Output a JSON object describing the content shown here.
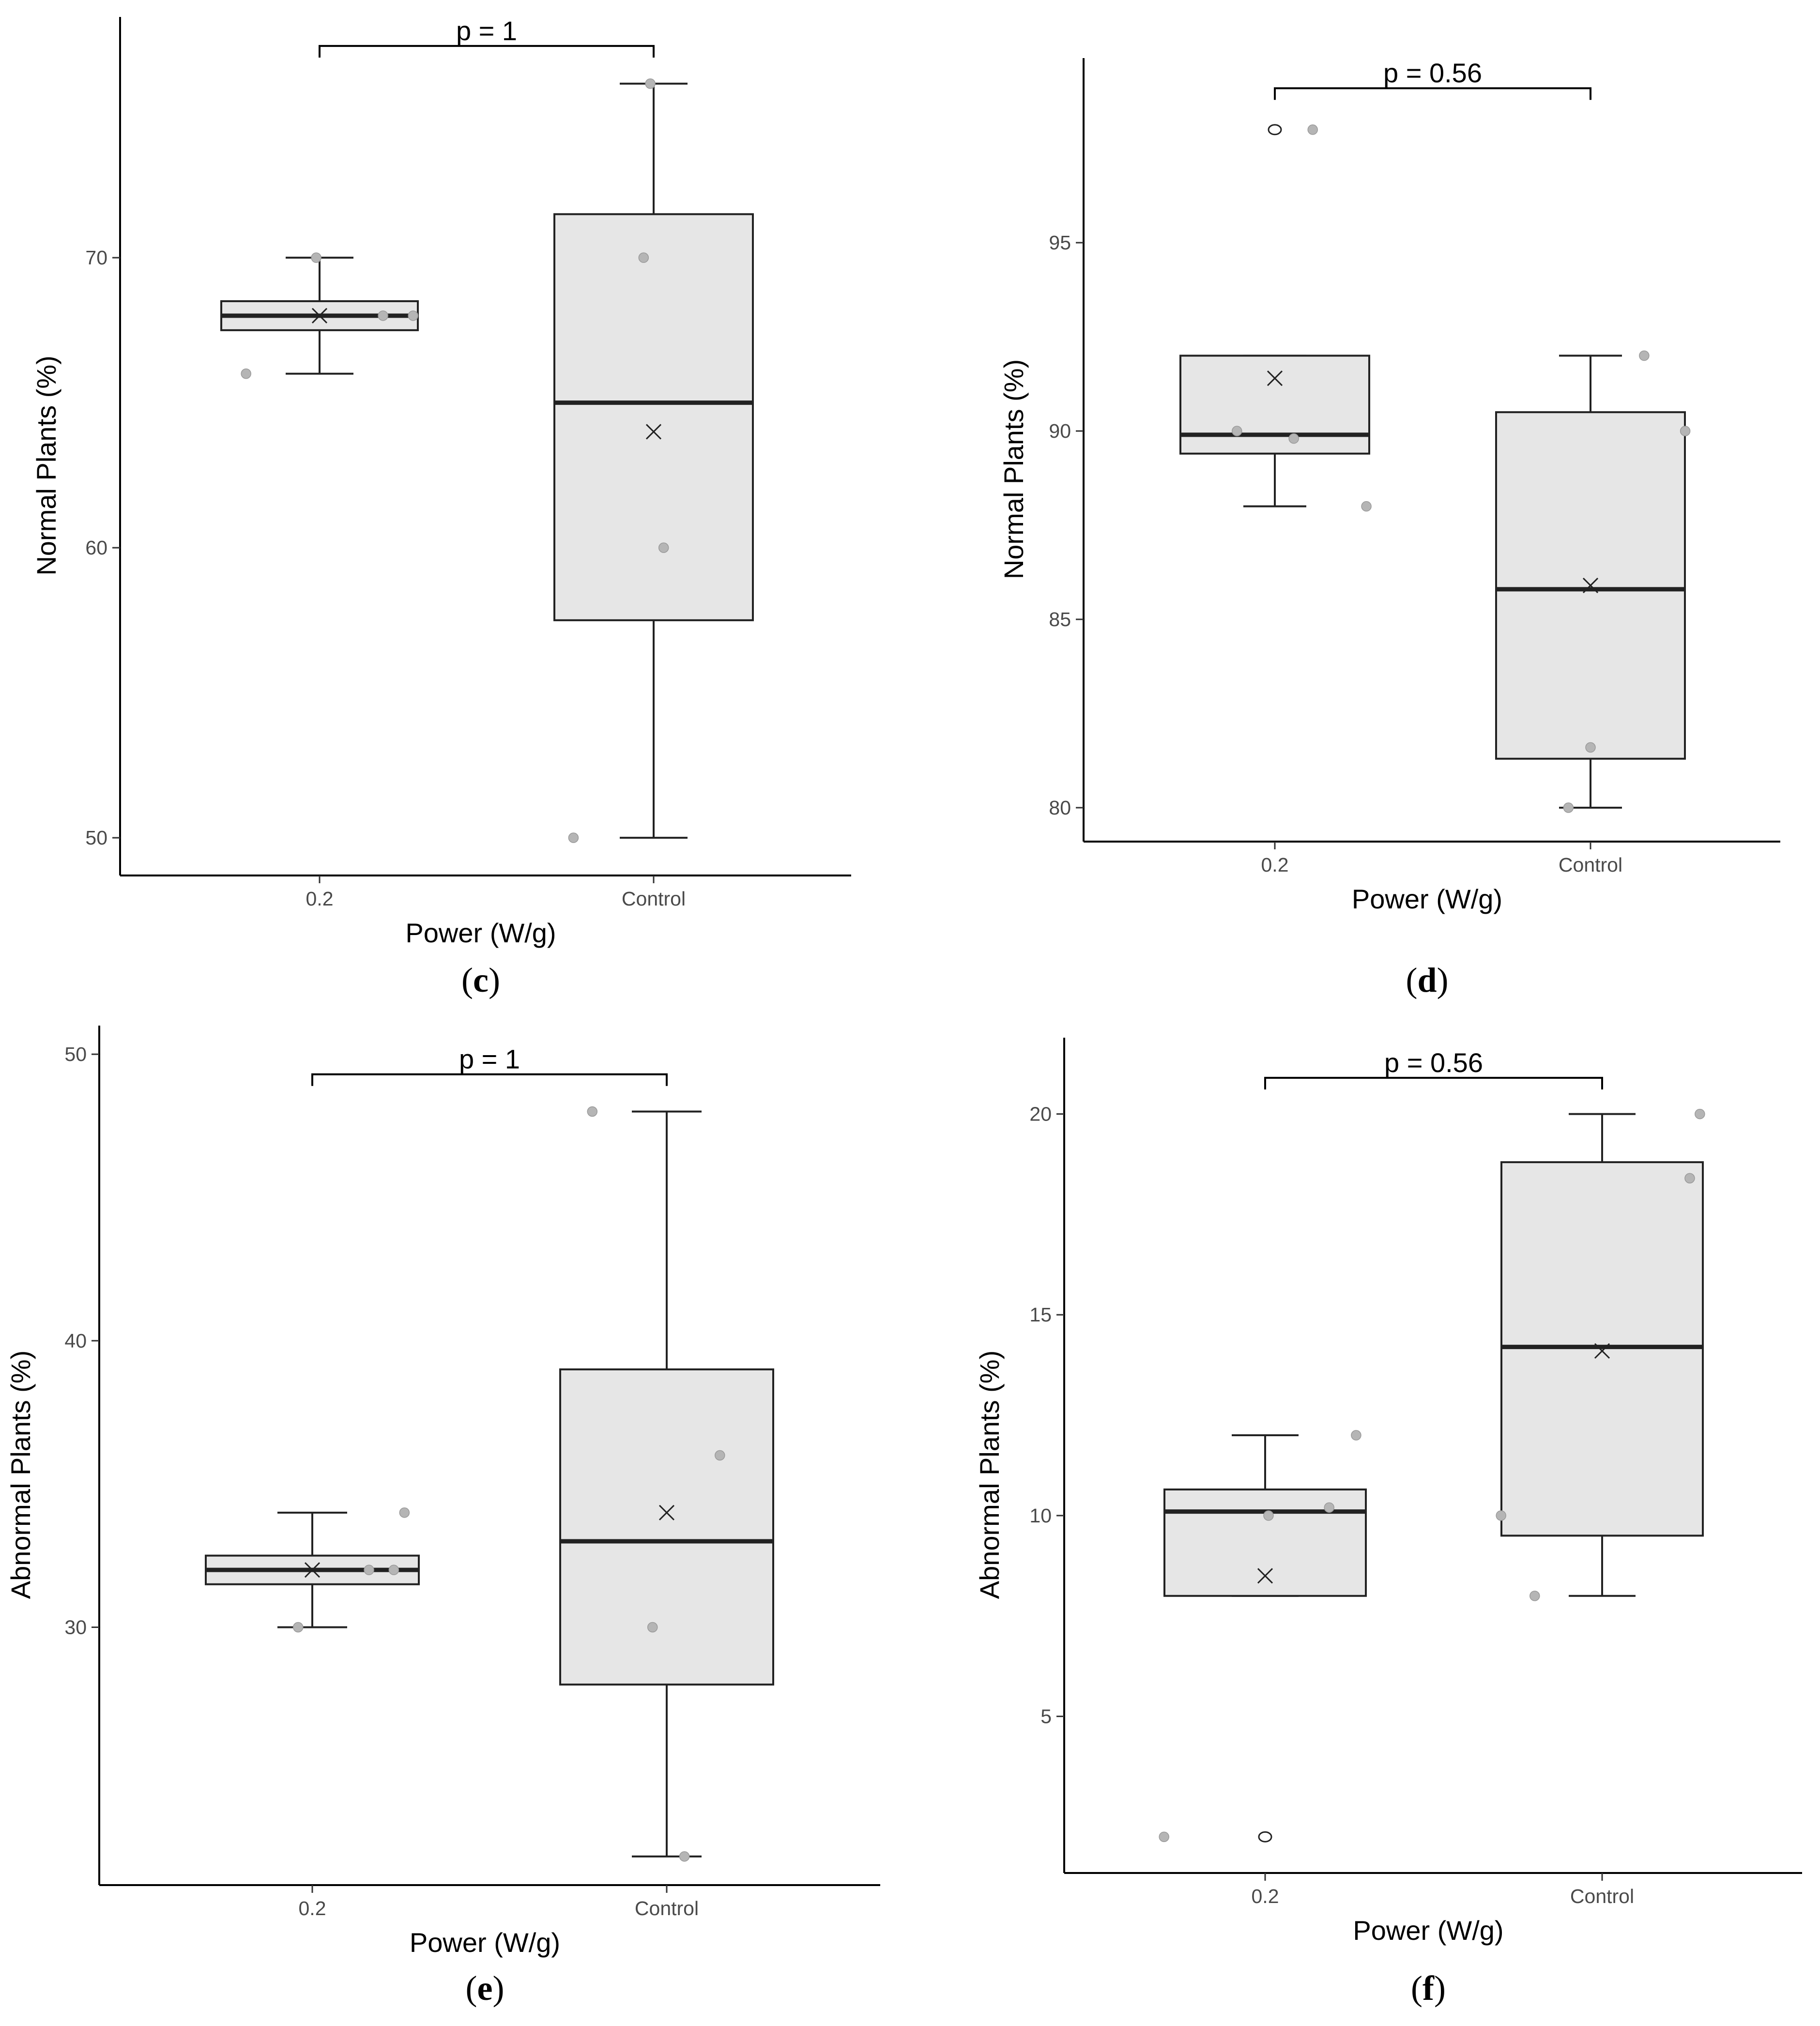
{
  "figure": {
    "panels": [
      "c",
      "d",
      "e",
      "f"
    ]
  },
  "chart_data": [
    {
      "id": "c",
      "type": "box",
      "panel_label": "c",
      "xlabel": "Power (W/g)",
      "ylabel": "Normal Plants (%)",
      "categories": [
        "0.2",
        "Control"
      ],
      "ylim": [
        48.7,
        78.3
      ],
      "yticks": [
        50,
        60,
        70
      ],
      "significance": {
        "text": "p = 1",
        "y": 77.3
      },
      "boxes": [
        {
          "category": "0.2",
          "whisker_low": 66,
          "q1": 67.5,
          "median": 68,
          "q3": 68.5,
          "whisker_high": 70,
          "mean": 68,
          "points": [
            {
              "dx": -0.22,
              "y": 66
            },
            {
              "dx": -0.01,
              "y": 70
            },
            {
              "dx": 0.19,
              "y": 68
            },
            {
              "dx": 0.28,
              "y": 68
            }
          ],
          "outliers": []
        },
        {
          "category": "Control",
          "whisker_low": 50,
          "q1": 57.5,
          "median": 65,
          "q3": 71.5,
          "whisker_high": 76,
          "mean": 64,
          "points": [
            {
              "dx": -0.24,
              "y": 50
            },
            {
              "dx": -0.03,
              "y": 70
            },
            {
              "dx": 0.03,
              "y": 60
            },
            {
              "dx": -0.01,
              "y": 76
            }
          ],
          "outliers": []
        }
      ]
    },
    {
      "id": "d",
      "type": "box",
      "panel_label": "d",
      "xlabel": "Power (W/g)",
      "ylabel": "Normal Plants (%)",
      "categories": [
        "0.2",
        "Control"
      ],
      "ylim": [
        79.1,
        99.9
      ],
      "yticks": [
        80,
        85,
        90,
        95
      ],
      "significance": {
        "text": "p = 0.56",
        "y": 99.1
      },
      "boxes": [
        {
          "category": "0.2",
          "whisker_low": 88,
          "q1": 89.4,
          "median": 89.9,
          "q3": 92,
          "whisker_high": 92,
          "mean": 91.4,
          "points": [
            {
              "dx": -0.12,
              "y": 90
            },
            {
              "dx": 0.06,
              "y": 89.8
            },
            {
              "dx": 0.12,
              "y": 98
            },
            {
              "dx": 0.29,
              "y": 88
            }
          ],
          "outliers": [
            {
              "y": 98
            }
          ]
        },
        {
          "category": "Control",
          "whisker_low": 80,
          "q1": 81.3,
          "median": 85.8,
          "q3": 90.5,
          "whisker_high": 92,
          "mean": 85.9,
          "points": [
            {
              "dx": -0.07,
              "y": 80
            },
            {
              "dx": 0.0,
              "y": 81.6
            },
            {
              "dx": 0.17,
              "y": 92
            },
            {
              "dx": 0.3,
              "y": 90
            }
          ],
          "outliers": []
        }
      ]
    },
    {
      "id": "e",
      "type": "box",
      "panel_label": "e",
      "xlabel": "Power (W/g)",
      "ylabel": "Abnormal Plants (%)",
      "categories": [
        "0.2",
        "Control"
      ],
      "ylim": [
        21.0,
        51.0
      ],
      "yticks": [
        30,
        40,
        50
      ],
      "significance": {
        "text": "p = 1",
        "y": 49.3
      },
      "boxes": [
        {
          "category": "0.2",
          "whisker_low": 30,
          "q1": 31.5,
          "median": 32,
          "q3": 32.5,
          "whisker_high": 34,
          "mean": 32,
          "points": [
            {
              "dx": -0.04,
              "y": 30
            },
            {
              "dx": 0.16,
              "y": 32
            },
            {
              "dx": 0.23,
              "y": 32
            },
            {
              "dx": 0.26,
              "y": 34
            }
          ],
          "outliers": []
        },
        {
          "category": "Control",
          "whisker_low": 22,
          "q1": 28,
          "median": 33,
          "q3": 39,
          "whisker_high": 48,
          "mean": 34,
          "points": [
            {
              "dx": -0.21,
              "y": 48
            },
            {
              "dx": -0.04,
              "y": 30
            },
            {
              "dx": 0.05,
              "y": 22
            },
            {
              "dx": 0.15,
              "y": 36
            }
          ],
          "outliers": []
        }
      ]
    },
    {
      "id": "f",
      "type": "box",
      "panel_label": "f",
      "xlabel": "Power (W/g)",
      "ylabel": "Abnormal Plants (%)",
      "categories": [
        "0.2",
        "Control"
      ],
      "ylim": [
        1.1,
        21.9
      ],
      "yticks": [
        5,
        10,
        15,
        20
      ],
      "significance": {
        "text": "p = 0.56",
        "y": 20.9
      },
      "boxes": [
        {
          "category": "0.2",
          "whisker_low": 8,
          "q1": 8,
          "median": 10.1,
          "q3": 10.65,
          "whisker_high": 12,
          "mean": 8.5,
          "points": [
            {
              "dx": -0.3,
              "y": 2
            },
            {
              "dx": 0.01,
              "y": 10
            },
            {
              "dx": 0.19,
              "y": 10.2
            },
            {
              "dx": 0.27,
              "y": 12
            },
            {
              "dx": 0.0,
              "y": 2
            }
          ],
          "outliers": [
            {
              "y": 2
            }
          ]
        },
        {
          "category": "Control",
          "whisker_low": 8,
          "q1": 9.5,
          "median": 14.2,
          "q3": 18.8,
          "whisker_high": 20,
          "mean": 14.1,
          "points": [
            {
              "dx": -0.2,
              "y": 8
            },
            {
              "dx": -0.3,
              "y": 10
            },
            {
              "dx": 0.26,
              "y": 18.4
            },
            {
              "dx": 0.29,
              "y": 20
            }
          ],
          "outliers": []
        }
      ]
    }
  ]
}
